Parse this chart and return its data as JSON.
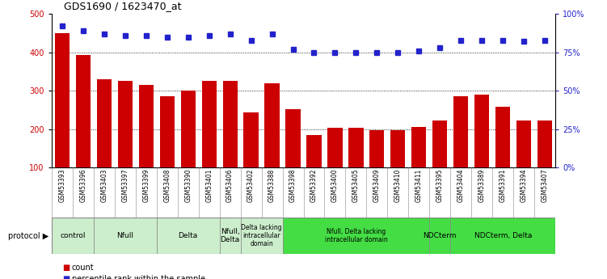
{
  "title": "GDS1690 / 1623470_at",
  "samples": [
    "GSM53393",
    "GSM53396",
    "GSM53403",
    "GSM53397",
    "GSM53399",
    "GSM53408",
    "GSM53390",
    "GSM53401",
    "GSM53406",
    "GSM53402",
    "GSM53388",
    "GSM53398",
    "GSM53392",
    "GSM53400",
    "GSM53405",
    "GSM53409",
    "GSM53410",
    "GSM53411",
    "GSM53395",
    "GSM53404",
    "GSM53389",
    "GSM53391",
    "GSM53394",
    "GSM53407"
  ],
  "counts": [
    450,
    393,
    330,
    325,
    315,
    285,
    300,
    325,
    325,
    243,
    320,
    252,
    185,
    203,
    204,
    197,
    198,
    205,
    222,
    285,
    290,
    258,
    222,
    222
  ],
  "percentiles": [
    92,
    89,
    87,
    86,
    86,
    85,
    85,
    86,
    87,
    83,
    87,
    77,
    75,
    75,
    75,
    75,
    75,
    76,
    78,
    83,
    83,
    83,
    82,
    83
  ],
  "bar_color": "#cc0000",
  "dot_color": "#2222cc",
  "protocol_groups": [
    {
      "label": "control",
      "start": 0,
      "end": 1,
      "color": "#cceecc"
    },
    {
      "label": "Nfull",
      "start": 2,
      "end": 4,
      "color": "#cceecc"
    },
    {
      "label": "Delta",
      "start": 5,
      "end": 7,
      "color": "#cceecc"
    },
    {
      "label": "Nfull,\nDelta",
      "start": 8,
      "end": 8,
      "color": "#cceecc"
    },
    {
      "label": "Delta lacking\nintracellular\ndomain",
      "start": 9,
      "end": 10,
      "color": "#cceecc"
    },
    {
      "label": "Nfull, Delta lacking\nintracellular domain",
      "start": 11,
      "end": 17,
      "color": "#44dd44"
    },
    {
      "label": "NDCterm",
      "start": 18,
      "end": 18,
      "color": "#44dd44"
    },
    {
      "label": "NDCterm, Delta",
      "start": 19,
      "end": 23,
      "color": "#44dd44"
    }
  ],
  "ylim_left": [
    100,
    500
  ],
  "ylim_right": [
    0,
    100
  ],
  "yticks_left": [
    100,
    200,
    300,
    400,
    500
  ],
  "yticks_right": [
    0,
    25,
    50,
    75,
    100
  ],
  "grid_values": [
    200,
    300,
    400
  ],
  "bar_width": 0.7
}
